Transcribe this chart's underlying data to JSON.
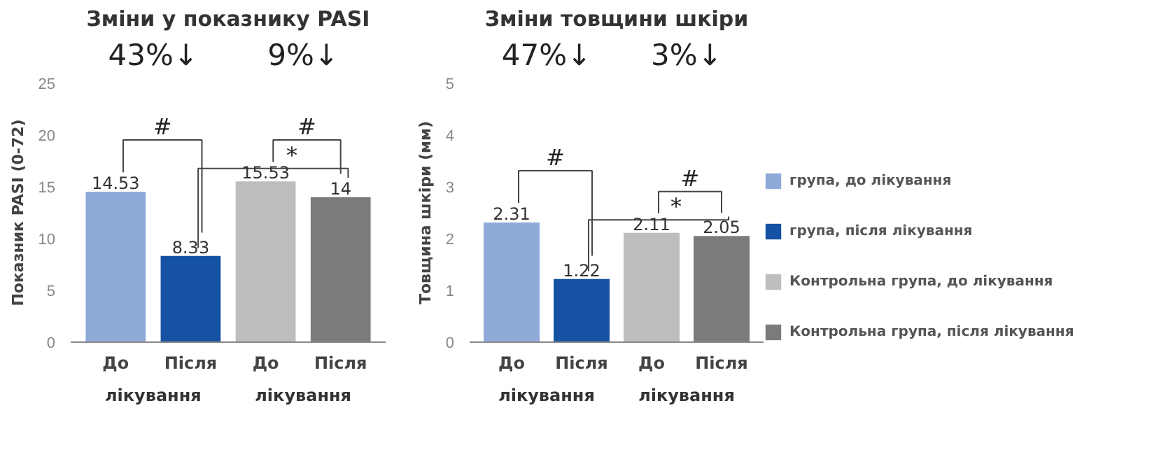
{
  "chart_data": [
    {
      "type": "bar",
      "title": "Зміни у показнику PASI",
      "ylabel": "Показник PASI (0-72)",
      "categories": [
        "До",
        "Після",
        "До",
        "Після"
      ],
      "series": [
        {
          "color": "#8fa9d8",
          "values": [
            14.53,
            null,
            null,
            null
          ]
        },
        {
          "color": "#1552a3",
          "values": [
            null,
            8.33,
            null,
            null
          ]
        },
        {
          "color": "#bdbdbd",
          "values": [
            null,
            null,
            15.53,
            null
          ]
        },
        {
          "color": "#7b7b7b",
          "values": [
            null,
            null,
            null,
            14
          ]
        }
      ],
      "ylim": [
        0,
        25
      ],
      "yticks": [
        0,
        5,
        10,
        15,
        20,
        25
      ],
      "data_labels": true,
      "grid": false,
      "legend": false,
      "annotations": [
        "43%↓",
        "9%↓",
        "#",
        "*",
        "#",
        "лікування",
        "лікування"
      ]
    },
    {
      "type": "bar",
      "title": "Зміни товщини шкіри",
      "ylabel": "Товщина шкіри (мм)",
      "categories": [
        "До",
        "Після",
        "До",
        "Після"
      ],
      "series": [
        {
          "name": "група, до лікування",
          "color": "#8fa9d8",
          "values": [
            2.31,
            null,
            null,
            null
          ]
        },
        {
          "name": "група, після лікування",
          "color": "#1552a3",
          "values": [
            null,
            1.22,
            null,
            null
          ]
        },
        {
          "name": "Контрольна група, до лікування",
          "color": "#bdbdbd",
          "values": [
            null,
            null,
            2.11,
            null
          ]
        },
        {
          "name": "Контрольна група, після лікування",
          "color": "#7b7b7b",
          "values": [
            null,
            null,
            null,
            2.05
          ]
        }
      ],
      "ylim": [
        0,
        5
      ],
      "yticks": [
        0,
        1,
        2,
        3,
        4,
        5
      ],
      "data_labels": true,
      "grid": false,
      "legend": "right",
      "annotations": [
        "47%↓",
        "3%↓",
        "#",
        "*",
        "#",
        "лікування",
        "лікування"
      ]
    }
  ]
}
